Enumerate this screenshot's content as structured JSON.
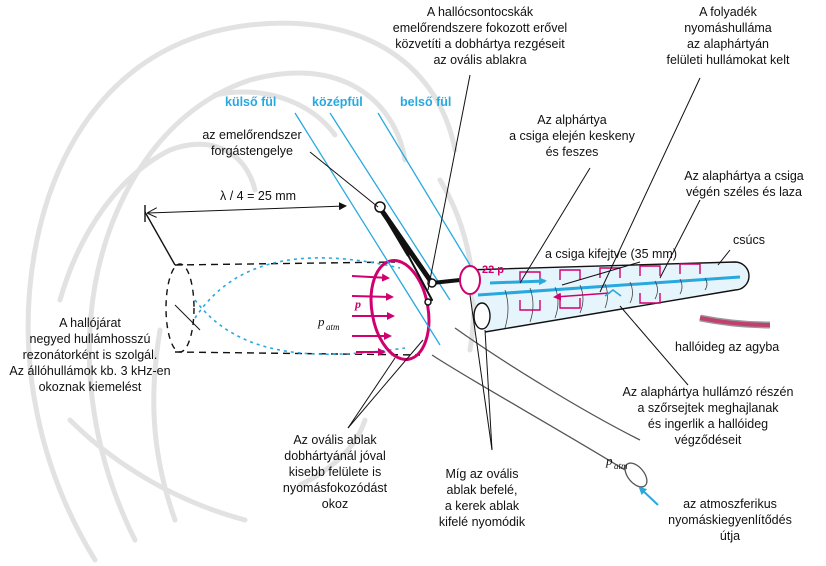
{
  "colors": {
    "cyan": "#29a8e0",
    "magenta": "#d0006f",
    "black": "#111111",
    "pink_nerve": "#c04070",
    "ghost": "#e3e3e3"
  },
  "regions": {
    "outer": "külső fül",
    "middle": "középfül",
    "inner": "belső fül"
  },
  "labels": {
    "ossicles": [
      "A hallócsontocskák",
      "emelőrendszere fokozott erővel",
      "közvetíti a dobhártya rezgéseit",
      "az ovális ablakra"
    ],
    "fluid_wave": [
      "A folyadék",
      "nyomáshulláma",
      "az alaphártyán",
      "felületi hullámokat kelt"
    ],
    "lever_axis": [
      "az emelőrendszer",
      "forgástengelye"
    ],
    "membrane_narrow": [
      "Az alphártya",
      "a csiga elején keskeny",
      "és feszes"
    ],
    "membrane_wide": [
      "Az alaphártya a csiga",
      "végén széles és laza"
    ],
    "wavelength": "λ / 4 = 25 mm",
    "cochlea_unrolled": "a csiga kifejtve (35 mm)",
    "apex": "csúcs",
    "nerve": "hallóideg az agyba",
    "ear_canal": [
      "A hallójárat",
      "negyed hullámhosszú",
      "rezonátorként is szolgál.",
      "Az állóhullámok kb. 3 kHz-en",
      "okoznak kiemelést"
    ],
    "hair_cells": [
      "Az alaphártya hullámzó részén",
      "a szőrsejtek meghajlanak",
      "és ingerlik a hallóideg",
      "végződéseit"
    ],
    "oval_window": [
      "Az ovális ablak",
      "dobhártyánál jóval",
      "kisebb felülete is",
      "nyomásfokozódást",
      "okoz"
    ],
    "windows_motion": [
      "Míg az ovális",
      "ablak befelé,",
      "a kerek ablak",
      "kifelé nyomódik"
    ],
    "eustachian": [
      "az atmoszferikus",
      "nyomáskiegyenlítődés",
      "útja"
    ]
  },
  "symbols": {
    "p_atm_base": "p",
    "atm_sub": "atm",
    "p": "p",
    "p22": "22 p"
  }
}
